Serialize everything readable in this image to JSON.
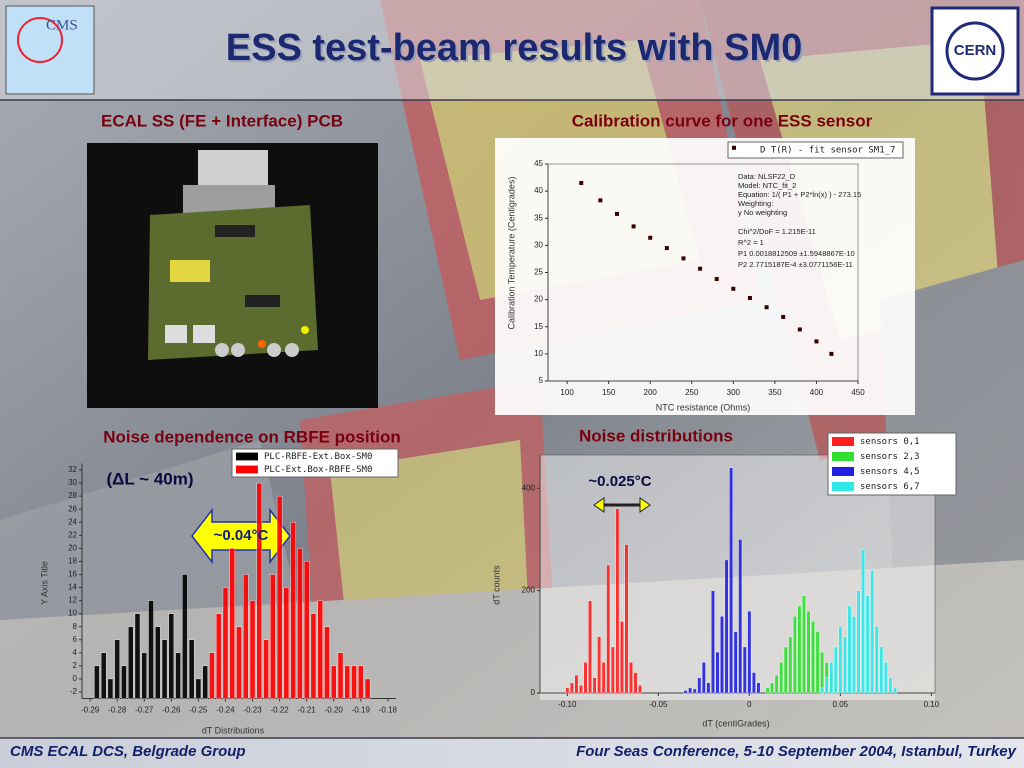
{
  "header": {
    "title": "ESS test-beam results with SM0",
    "logo_left": "CMS",
    "logo_right": "CERN"
  },
  "pcb_panel": {
    "title": "ECAL SS (FE + Interface) PCB"
  },
  "chart_data": [
    {
      "type": "scatter",
      "title": "Calibration curve for one ESS sensor",
      "x_label": "NTC resistance (Ohms)",
      "y_label": "Calibration Temperature (Centigrades)",
      "xlim": [
        77,
        450
      ],
      "xticks": [
        100,
        150,
        200,
        250,
        300,
        350,
        400,
        450
      ],
      "ylim": [
        5,
        45
      ],
      "yticks": [
        5,
        10,
        15,
        20,
        25,
        30,
        35,
        40,
        45
      ],
      "series": [
        {
          "name": "D T(R) - fit sensor SM1_7",
          "color": "#3a0000",
          "x": [
            117,
            140,
            160,
            180,
            200,
            220,
            240,
            260,
            280,
            300,
            320,
            340,
            360,
            380,
            400,
            418
          ],
          "values": [
            41.5,
            38.3,
            35.8,
            33.5,
            31.4,
            29.5,
            27.6,
            25.7,
            23.8,
            22.0,
            20.3,
            18.6,
            16.8,
            14.5,
            12.3,
            10.0
          ]
        }
      ],
      "stats": [
        "Data: NLSF22_D",
        "Model: NTC_fit_2",
        "Equation: 1/( P1 + P2*ln(x) ) - 273.15",
        "Weighting:",
        "y        No weighting",
        "Chi^2/DoF       = 1.215E-11",
        "R^2      =   1",
        "P1       0.0018812509   ±1.5948867E-10",
        "P2       2.7715187E-4   ±3.0771156E-11"
      ]
    },
    {
      "type": "bar",
      "title": "Noise dependence on RBFE position",
      "x_label": "dT Distributions",
      "y_label": "Y Axis Title",
      "annotations": [
        "(ΔL ~ 40m)",
        "~0.04°C"
      ],
      "xlim": [
        -0.293,
        -0.177
      ],
      "xticks": [
        -0.29,
        -0.28,
        -0.27,
        -0.26,
        -0.25,
        -0.24,
        -0.23,
        -0.22,
        -0.21,
        {
          "value": -0.2,
          "label": "-0.20"
        },
        -0.19,
        -0.18
      ],
      "ylim": [
        -3,
        33
      ],
      "yticks": [
        -2,
        0,
        2,
        4,
        6,
        8,
        10,
        12,
        14,
        16,
        18,
        20,
        22,
        24,
        26,
        28,
        30,
        32
      ],
      "series": [
        {
          "name": "PLC-RBFE-Ext.Box-SM0",
          "color": "#000000",
          "x": [
            -0.2875,
            -0.285,
            -0.2825,
            -0.28,
            -0.2775,
            -0.275,
            -0.2725,
            -0.27,
            -0.2675,
            -0.265,
            -0.2625,
            -0.26,
            -0.2575,
            -0.255,
            -0.2525,
            -0.25,
            -0.2475
          ],
          "values": [
            2,
            4,
            0,
            6,
            2,
            8,
            10,
            4,
            12,
            8,
            6,
            10,
            4,
            16,
            6,
            0,
            2
          ]
        },
        {
          "name": "PLC-Ext.Box-RBFE-SM0",
          "color": "#ff0000",
          "x": [
            -0.245,
            -0.2425,
            -0.24,
            -0.2375,
            -0.235,
            -0.2325,
            -0.23,
            -0.2275,
            -0.225,
            -0.2225,
            -0.22,
            -0.2175,
            -0.215,
            -0.2125,
            -0.21,
            -0.2075,
            -0.205,
            -0.2025,
            -0.2,
            -0.1975,
            -0.195,
            -0.1925,
            -0.19,
            -0.1875
          ],
          "values": [
            4,
            10,
            14,
            20,
            8,
            16,
            12,
            30,
            6,
            16,
            28,
            14,
            24,
            20,
            18,
            10,
            12,
            8,
            2,
            4,
            2,
            2,
            2,
            0
          ]
        }
      ]
    },
    {
      "type": "bar",
      "title": "Noise distributions",
      "x_label": "dT (centiGrades)",
      "y_label": "dT  counts",
      "annotations": [
        "~0.025°C"
      ],
      "xlim": [
        -0.115,
        0.102
      ],
      "xticks": [
        {
          "value": -0.1,
          "label": "-0.10"
        },
        -0.05,
        0,
        0.05,
        {
          "value": 0.1,
          "label": "0.10"
        }
      ],
      "ylim": [
        0,
        465
      ],
      "yticks": [
        0,
        200,
        400
      ],
      "series": [
        {
          "name": "sensors 0,1",
          "color": "#ff2020",
          "x": [
            -0.1,
            -0.0975,
            -0.095,
            -0.0925,
            -0.09,
            -0.0875,
            -0.085,
            -0.0825,
            -0.08,
            -0.0775,
            -0.075,
            -0.0725,
            -0.07,
            -0.0675,
            -0.065,
            -0.0625,
            -0.06
          ],
          "values": [
            10,
            20,
            35,
            15,
            60,
            180,
            30,
            110,
            60,
            250,
            90,
            360,
            140,
            290,
            60,
            40,
            15
          ]
        },
        {
          "name": "sensors 2,3",
          "color": "#30e030",
          "x": [
            0.01,
            0.0125,
            0.015,
            0.0175,
            0.02,
            0.0225,
            0.025,
            0.0275,
            0.03,
            0.0325,
            0.035,
            0.0375,
            0.04,
            0.0425,
            0.045,
            0.0475,
            0.05
          ],
          "values": [
            10,
            20,
            35,
            60,
            90,
            110,
            150,
            170,
            190,
            160,
            140,
            120,
            80,
            60,
            40,
            20,
            10
          ]
        },
        {
          "name": "sensors 4,5",
          "color": "#2020e0",
          "x": [
            -0.035,
            -0.0325,
            -0.03,
            -0.0275,
            -0.025,
            -0.0225,
            -0.02,
            -0.0175,
            -0.015,
            -0.0125,
            -0.01,
            -0.0075,
            -0.005,
            -0.0025,
            0,
            0.0025,
            0.005
          ],
          "values": [
            5,
            10,
            8,
            30,
            60,
            20,
            200,
            80,
            150,
            260,
            440,
            120,
            300,
            90,
            160,
            40,
            20
          ]
        },
        {
          "name": "sensors 6,7",
          "color": "#30e8e8",
          "x": [
            0.04,
            0.0425,
            0.045,
            0.0475,
            0.05,
            0.0525,
            0.055,
            0.0575,
            0.06,
            0.0625,
            0.065,
            0.0675,
            0.07,
            0.0725,
            0.075,
            0.0775,
            0.08
          ],
          "values": [
            10,
            30,
            60,
            90,
            130,
            110,
            170,
            150,
            200,
            280,
            190,
            240,
            130,
            90,
            60,
            30,
            10
          ]
        }
      ]
    }
  ],
  "footer": {
    "left": "CMS ECAL DCS, Belgrade Group",
    "right": "Four Seas Conference, 5-10 September 2004, Istanbul, Turkey"
  }
}
